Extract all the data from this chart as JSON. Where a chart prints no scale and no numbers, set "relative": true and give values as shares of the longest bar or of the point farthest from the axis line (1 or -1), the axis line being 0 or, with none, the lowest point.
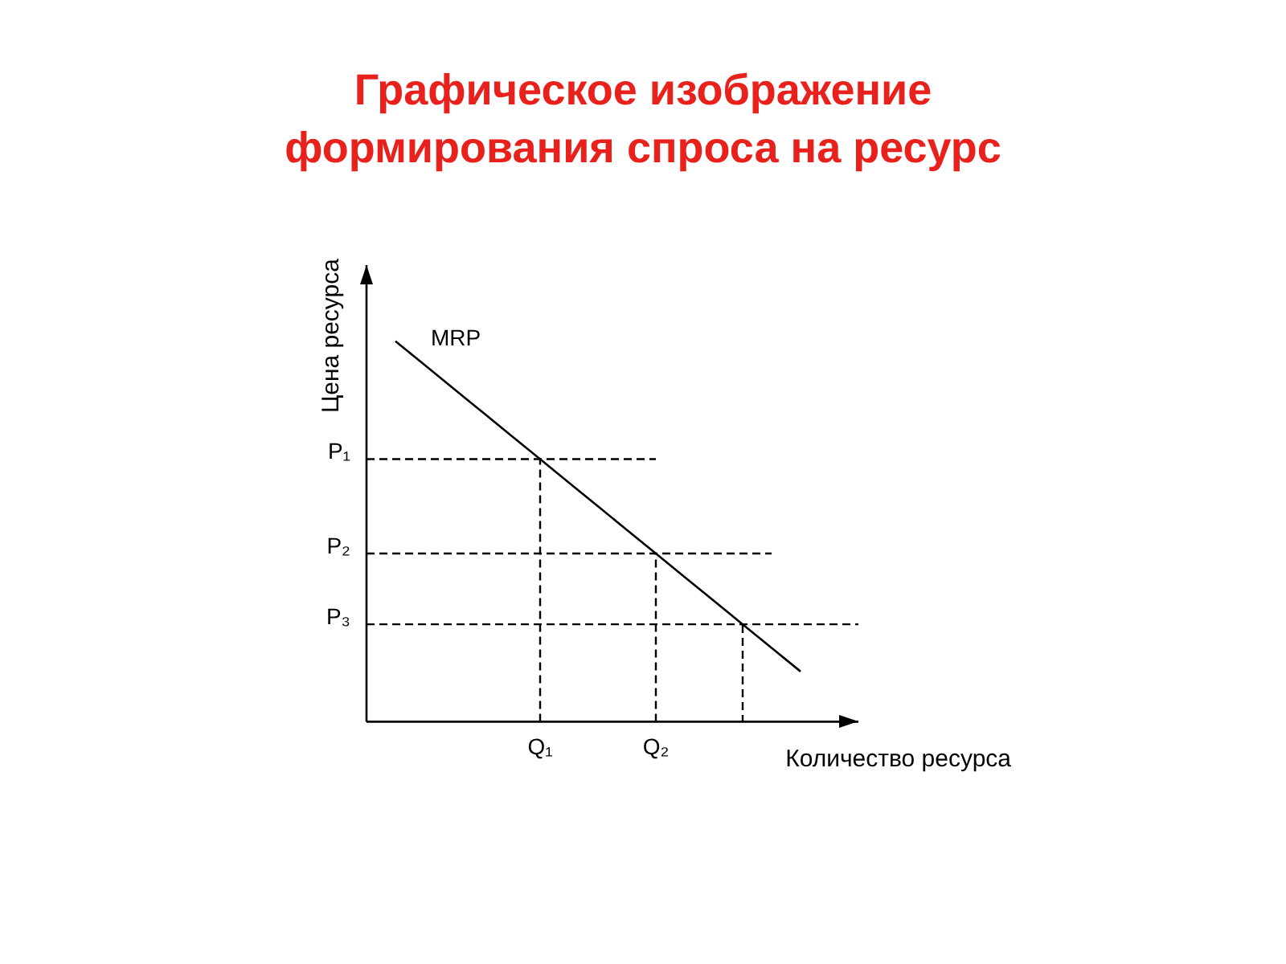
{
  "chart_data": {
    "type": "line",
    "title": "Графическое изображение формирования спроса на ресурс",
    "xlabel": "Количество ресурса",
    "ylabel": "Цена ресурса",
    "relative": true,
    "categories": [
      null,
      null,
      null,
      null,
      null,
      null,
      "Q₁",
      null,
      null,
      null,
      "Q₂",
      null,
      null,
      null,
      null,
      null,
      null,
      null
    ],
    "series": [
      {
        "name": "MRP",
        "color": "#000000",
        "values": [
          null,
          1,
          0.938,
          0.876,
          0.814,
          0.752,
          0.69,
          0.628,
          0.566,
          0.504,
          0.442,
          0.38,
          0.318,
          0.256,
          0.194,
          0.132,
          null,
          null
        ]
      }
    ],
    "ref_lines": [
      {
        "axis": "y",
        "value": 0.69,
        "label": "P₁",
        "line_style": "dashed",
        "color": "#000000"
      },
      {
        "axis": "y",
        "value": 0.442,
        "label": "P₂",
        "line_style": "dashed",
        "color": "#000000"
      },
      {
        "axis": "y",
        "value": 0.256,
        "label": "P₃",
        "line_style": "dashed",
        "color": "#000000"
      },
      {
        "axis": "x",
        "value": "Q₁",
        "line_style": "dashed",
        "color": "#000000"
      },
      {
        "axis": "x",
        "value": "Q₂",
        "line_style": "dashed",
        "color": "#000000"
      }
    ],
    "legend": false,
    "grid": false,
    "marker": "none",
    "line_style": "solid"
  }
}
